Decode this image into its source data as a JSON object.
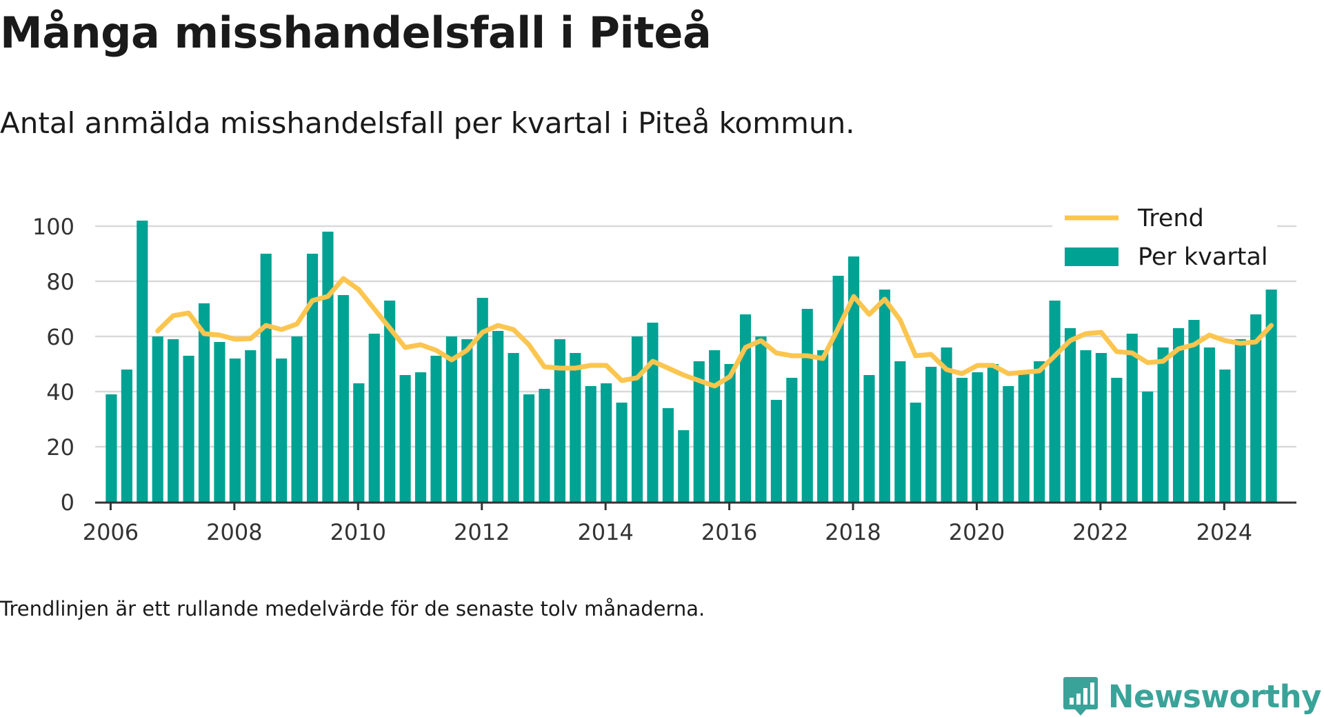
{
  "title": "Många misshandelsfall i Piteå",
  "subtitle": "Antal anmälda misshandelsfall per kvartal i Piteå kommun.",
  "note": "Trendlinjen är ett rullande medelvärde för de senaste tolv månaderna.",
  "brand": {
    "name": "Newsworthy",
    "icon": "newsworthy-logo-icon"
  },
  "colors": {
    "bars": "#00a294",
    "trend": "#fbc54f",
    "grid": "#d9d9d9",
    "axis": "#333333",
    "brand": "#3aa399"
  },
  "chart_data": {
    "type": "bar",
    "x_axis": {
      "ticks": [
        "2006",
        "2008",
        "2010",
        "2012",
        "2014",
        "2016",
        "2018",
        "2020",
        "2022",
        "2024"
      ],
      "range": [
        "2005-10",
        "2025-03"
      ]
    },
    "y_axis": {
      "ticks": [
        0,
        20,
        40,
        60,
        80,
        100
      ],
      "range": [
        0,
        102
      ]
    },
    "grid": true,
    "legend": {
      "placement": "top-right",
      "items": [
        "Trend",
        "Per kvartal"
      ]
    },
    "series": [
      {
        "name": "Per kvartal",
        "type": "bar",
        "x": [
          "2006-01",
          "2006-04",
          "2006-07",
          "2006-10",
          "2007-01",
          "2007-04",
          "2007-07",
          "2007-10",
          "2008-01",
          "2008-04",
          "2008-07",
          "2008-10",
          "2009-01",
          "2009-04",
          "2009-07",
          "2009-10",
          "2010-01",
          "2010-04",
          "2010-07",
          "2010-10",
          "2011-01",
          "2011-04",
          "2011-07",
          "2011-10",
          "2012-01",
          "2012-04",
          "2012-07",
          "2012-10",
          "2013-01",
          "2013-04",
          "2013-07",
          "2013-10",
          "2014-01",
          "2014-04",
          "2014-07",
          "2014-10",
          "2015-01",
          "2015-04",
          "2015-07",
          "2015-10",
          "2016-01",
          "2016-04",
          "2016-07",
          "2016-10",
          "2017-01",
          "2017-04",
          "2017-07",
          "2017-10",
          "2018-01",
          "2018-04",
          "2018-07",
          "2018-10",
          "2019-01",
          "2019-04",
          "2019-07",
          "2019-10",
          "2020-01",
          "2020-04",
          "2020-07",
          "2020-10",
          "2021-01",
          "2021-04",
          "2021-07",
          "2021-10",
          "2022-01",
          "2022-04",
          "2022-07",
          "2022-10",
          "2023-01",
          "2023-04",
          "2023-07",
          "2023-10",
          "2024-01",
          "2024-04",
          "2024-07",
          "2024-10"
        ],
        "values": [
          39,
          48,
          102,
          60,
          59,
          53,
          72,
          58,
          52,
          55,
          90,
          52,
          60,
          90,
          98,
          75,
          43,
          61,
          73,
          46,
          47,
          53,
          60,
          59,
          74,
          62,
          54,
          39,
          41,
          59,
          54,
          42,
          43,
          36,
          60,
          65,
          34,
          26,
          51,
          55,
          50,
          68,
          60,
          37,
          45,
          70,
          55,
          82,
          89,
          46,
          77,
          51,
          36,
          49,
          56,
          45,
          47,
          50,
          42,
          47,
          51,
          73,
          63,
          55,
          54,
          45,
          61,
          40,
          56,
          63,
          66,
          56,
          48,
          59,
          68,
          77
        ]
      },
      {
        "name": "Trend",
        "type": "line",
        "x": [
          "2006-10",
          "2007-01",
          "2007-04",
          "2007-07",
          "2007-10",
          "2008-01",
          "2008-04",
          "2008-07",
          "2008-10",
          "2009-01",
          "2009-04",
          "2009-07",
          "2009-10",
          "2010-01",
          "2010-04",
          "2010-07",
          "2010-10",
          "2011-01",
          "2011-04",
          "2011-07",
          "2011-10",
          "2012-01",
          "2012-04",
          "2012-07",
          "2012-10",
          "2013-01",
          "2013-04",
          "2013-07",
          "2013-10",
          "2014-01",
          "2014-04",
          "2014-07",
          "2014-10",
          "2015-01",
          "2015-04",
          "2015-07",
          "2015-10",
          "2016-01",
          "2016-04",
          "2016-07",
          "2016-10",
          "2017-01",
          "2017-04",
          "2017-07",
          "2017-10",
          "2018-01",
          "2018-04",
          "2018-07",
          "2018-10",
          "2019-01",
          "2019-04",
          "2019-07",
          "2019-10",
          "2020-01",
          "2020-04",
          "2020-07",
          "2020-10",
          "2021-01",
          "2021-04",
          "2021-07",
          "2021-10",
          "2022-01",
          "2022-04",
          "2022-07",
          "2022-10",
          "2023-01",
          "2023-04",
          "2023-07",
          "2023-10",
          "2024-01",
          "2024-04",
          "2024-07",
          "2024-10"
        ],
        "values": [
          62,
          67.5,
          68.5,
          61,
          60.5,
          59,
          59.2,
          64,
          62.5,
          64.5,
          73,
          74.5,
          81,
          77,
          70,
          63,
          56,
          57,
          55,
          51.5,
          55,
          61.5,
          64,
          62.5,
          57,
          49,
          48.5,
          48.5,
          49.5,
          49.5,
          44,
          45,
          51,
          48.5,
          46,
          44,
          42,
          45.5,
          56,
          58.5,
          54,
          53,
          53,
          52,
          63,
          74.5,
          68,
          73.5,
          66,
          53,
          53.5,
          48,
          46.5,
          49.5,
          49.5,
          46.5,
          47,
          47.5,
          53,
          58.5,
          61,
          61.5,
          54.5,
          54,
          50.5,
          51,
          55.5,
          57,
          60.5,
          58.5,
          57.5,
          58,
          64
        ]
      }
    ]
  }
}
